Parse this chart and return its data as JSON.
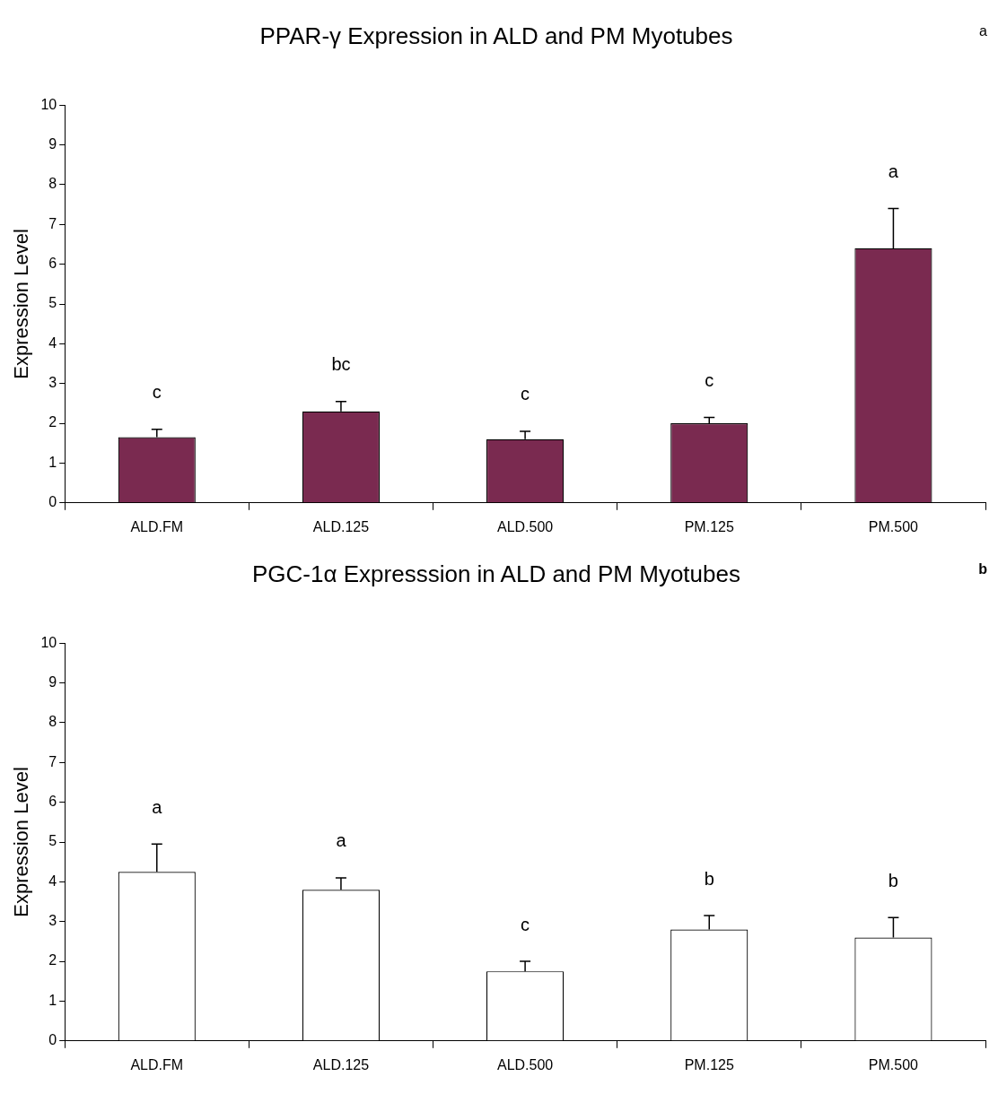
{
  "chart_data": [
    {
      "type": "bar",
      "title": "PPAR-γ Expression in ALD and PM Myotubes",
      "ylabel": "Expression Level",
      "categories": [
        "ALD.FM",
        "ALD.125",
        "ALD.500",
        "PM.125",
        "PM.500"
      ],
      "values": [
        1.65,
        2.3,
        1.6,
        2.0,
        6.4
      ],
      "errors": [
        [
          1.65,
          1.85
        ],
        [
          2.3,
          2.55
        ],
        [
          1.6,
          1.8
        ],
        [
          2.0,
          2.15
        ],
        [
          6.4,
          7.4
        ]
      ],
      "color": "#7a2a50",
      "ylim": [
        0,
        10
      ],
      "yticks": [
        0,
        1,
        2,
        3,
        4,
        5,
        6,
        7,
        8,
        9,
        10
      ],
      "grid": false,
      "legend": false,
      "annotations": [
        "a",
        {
          "text": "c",
          "x": "ALD.FM",
          "y": 1.85
        },
        {
          "text": "bc",
          "x": "ALD.125",
          "y": 2.55
        },
        {
          "text": "c",
          "x": "ALD.500",
          "y": 1.8
        },
        {
          "text": "c",
          "x": "PM.125",
          "y": 2.15
        },
        {
          "text": "a",
          "x": "PM.500",
          "y": 7.4
        }
      ]
    },
    {
      "type": "bar",
      "title": "PGC-1α Expresssion in ALD and PM Myotubes",
      "ylabel": "Expression Level",
      "categories": [
        "ALD.FM",
        "ALD.125",
        "ALD.500",
        "PM.125",
        "PM.500"
      ],
      "values": [
        4.25,
        3.8,
        1.75,
        2.8,
        2.6
      ],
      "errors": [
        [
          4.25,
          4.95
        ],
        [
          3.8,
          4.1
        ],
        [
          1.75,
          2.0
        ],
        [
          2.8,
          3.15
        ],
        [
          2.6,
          3.1
        ]
      ],
      "color": "#ffffff",
      "ylim": [
        0,
        10
      ],
      "yticks": [
        0,
        1,
        2,
        3,
        4,
        5,
        6,
        7,
        8,
        9,
        10
      ],
      "grid": false,
      "legend": false,
      "annotations": [
        "b",
        {
          "text": "a",
          "x": "ALD.FM",
          "y": 4.95
        },
        {
          "text": "a",
          "x": "ALD.125",
          "y": 4.1
        },
        {
          "text": "c",
          "x": "ALD.500",
          "y": 2.0
        },
        {
          "text": "b",
          "x": "PM.125",
          "y": 3.15
        },
        {
          "text": "b",
          "x": "PM.500",
          "y": 3.1
        }
      ]
    }
  ]
}
